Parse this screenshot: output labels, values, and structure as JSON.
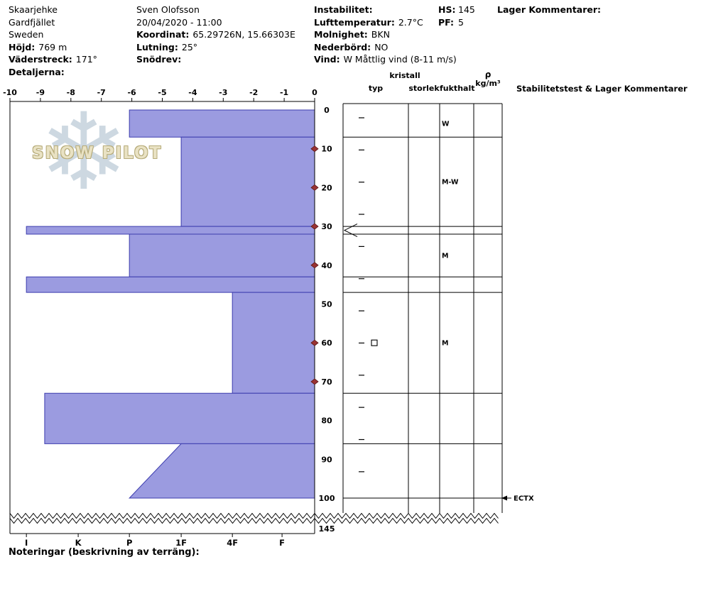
{
  "header": {
    "site": {
      "name": "Skaarjehke",
      "region": "Gardfjället",
      "country": "Sweden",
      "elevation_label": "Höjd:",
      "elevation_value": "769 m",
      "aspect_label": "Väderstreck:",
      "aspect_value": "171°",
      "details_label": "Detaljerna:"
    },
    "observer": {
      "name": "Sven Olofsson",
      "datetime": "20/04/2020 - 11:00",
      "coord_label": "Koordinat:",
      "coord_value": "65.29726N, 15.66303E",
      "slope_label": "Lutning:",
      "slope_value": "25°",
      "drift_label": "Snödrev:"
    },
    "weather": {
      "instability_label": "Instabilitet:",
      "airtemp_label": "Lufttemperatur:",
      "airtemp_value": "2.7°C",
      "sky_label": "Molnighet:",
      "sky_value": "BKN",
      "precip_label": "Nederbörd:",
      "precip_value": "NO",
      "wind_label": "Vind:",
      "wind_value": "W Måttlig vind (8-11 m/s)"
    },
    "totals": {
      "hs_label": "HS:",
      "hs_value": "145",
      "pf_label": "PF:",
      "pf_value": "5"
    },
    "comments_label": "Lager Kommentarer:"
  },
  "watermark": {
    "brand": "SNOW PILOT"
  },
  "table": {
    "kristall_header": "kristall",
    "typ_header": "typ",
    "storlek_header": "storlek",
    "fukthalt_header": "fukthalt",
    "rho_symbol": "ρ",
    "rho_unit": "kg/m³",
    "stability_header": "Stabilitetstest & Lager Kommentarer"
  },
  "footer": {
    "notes_label": "Noteringar (beskrivning av terräng):"
  },
  "chart_data": {
    "type": "snow-profile",
    "title": "Snow pit profile",
    "temp_axis": {
      "min": -10,
      "max": 0,
      "ticks": [
        -10,
        -9,
        -8,
        -7,
        -6,
        -5,
        -4,
        -3,
        -2,
        -1,
        0
      ]
    },
    "depth_axis": {
      "ticks": [
        0,
        10,
        20,
        30,
        40,
        50,
        60,
        70,
        80,
        90,
        100
      ],
      "total_depth_label": "145"
    },
    "hardness_axis": {
      "labels": [
        "I",
        "K",
        "P",
        "1F",
        "4F",
        "F"
      ],
      "positions": [
        0.054,
        0.224,
        0.392,
        0.562,
        0.73,
        0.893
      ]
    },
    "layers": [
      {
        "top_cm": 0,
        "bottom_cm": 7,
        "hardness_top": "P",
        "hardness_bottom": "P",
        "frac_top": 0.392,
        "frac_bottom": 0.392,
        "moisture": "W",
        "grain": "",
        "concern": false
      },
      {
        "top_cm": 7,
        "bottom_cm": 30,
        "hardness_top": "1F",
        "hardness_bottom": "1F",
        "frac_top": 0.562,
        "frac_bottom": 0.562,
        "moisture": "M-W",
        "grain": "",
        "concern": false
      },
      {
        "top_cm": 30,
        "bottom_cm": 32,
        "hardness_top": "I",
        "hardness_bottom": "I",
        "frac_top": 0.054,
        "frac_bottom": 0.054,
        "moisture": "",
        "grain": "",
        "concern": true
      },
      {
        "top_cm": 32,
        "bottom_cm": 43,
        "hardness_top": "P",
        "hardness_bottom": "P",
        "frac_top": 0.392,
        "frac_bottom": 0.392,
        "moisture": "M",
        "grain": "",
        "concern": false
      },
      {
        "top_cm": 43,
        "bottom_cm": 47,
        "hardness_top": "I",
        "hardness_bottom": "I",
        "frac_top": 0.054,
        "frac_bottom": 0.054,
        "moisture": "",
        "grain": "",
        "concern": false
      },
      {
        "top_cm": 47,
        "bottom_cm": 73,
        "hardness_top": "4F",
        "hardness_bottom": "4F",
        "frac_top": 0.73,
        "frac_bottom": 0.73,
        "moisture": "M",
        "grain": "□",
        "concern": false
      },
      {
        "top_cm": 73,
        "bottom_cm": 86,
        "hardness_top": "K-I",
        "hardness_bottom": "K-I",
        "frac_top": 0.114,
        "frac_bottom": 0.114,
        "moisture": "",
        "grain": "",
        "concern": false
      },
      {
        "top_cm": 86,
        "bottom_cm": 100,
        "hardness_top": "1F",
        "hardness_bottom": "P",
        "frac_top": 0.562,
        "frac_bottom": 0.392,
        "moisture": "",
        "grain": "",
        "concern": false
      }
    ],
    "temp_points": [
      {
        "depth_cm": 10,
        "temp_c": 0
      },
      {
        "depth_cm": 20,
        "temp_c": 0
      },
      {
        "depth_cm": 30,
        "temp_c": 0
      },
      {
        "depth_cm": 40,
        "temp_c": 0
      },
      {
        "depth_cm": 60,
        "temp_c": 0
      },
      {
        "depth_cm": 70,
        "temp_c": 0
      }
    ],
    "tests": [
      {
        "depth_cm": 100,
        "result": "ECTX"
      }
    ],
    "colors": {
      "layer_fill": "#9b9be0",
      "layer_stroke": "#3c3cae",
      "temp_marker": "#993333",
      "axis": "#000000"
    }
  }
}
